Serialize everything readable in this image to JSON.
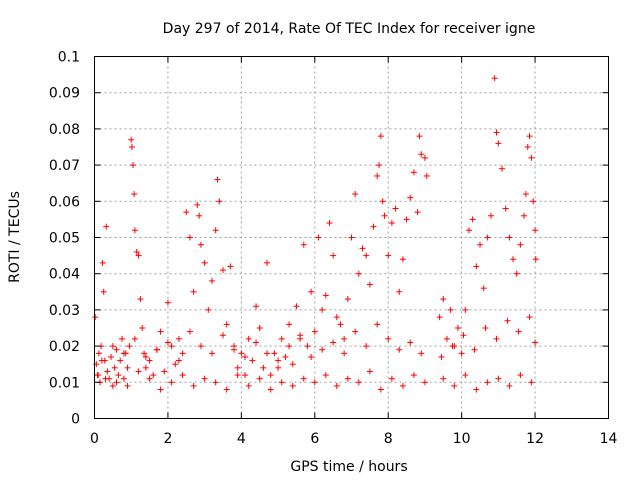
{
  "chart_data": {
    "type": "scatter",
    "title": "Day 297 of 2014, Rate Of TEC Index for receiver igne",
    "xlabel": "GPS time / hours",
    "ylabel": "ROTI / TECUs",
    "xlim": [
      0,
      14
    ],
    "ylim": [
      0,
      0.1
    ],
    "x_ticks": [
      "0",
      "2",
      "4",
      "6",
      "8",
      "10",
      "12",
      "14"
    ],
    "y_ticks": [
      "0",
      "0.01",
      "0.02",
      "0.03",
      "0.04",
      "0.05",
      "0.06",
      "0.07",
      "0.08",
      "0.09",
      "0.1"
    ],
    "grid": true,
    "marker": "+",
    "color": "#ff0000",
    "series": [
      {
        "name": "ROTI",
        "x": [
          0.02,
          0.05,
          0.08,
          0.12,
          0.15,
          0.18,
          0.22,
          0.25,
          0.28,
          0.32,
          0.35,
          0.4,
          0.45,
          0.5,
          0.55,
          0.6,
          0.65,
          0.7,
          0.75,
          0.8,
          0.85,
          0.9,
          0.95,
          1.0,
          1.02,
          1.05,
          1.08,
          1.1,
          1.15,
          1.2,
          1.25,
          1.3,
          1.35,
          1.4,
          1.5,
          1.6,
          1.7,
          1.8,
          1.9,
          2.0,
          2.1,
          2.2,
          2.3,
          2.4,
          2.5,
          2.6,
          2.7,
          2.8,
          2.85,
          2.9,
          3.0,
          3.1,
          3.2,
          3.3,
          3.35,
          3.4,
          3.5,
          3.6,
          3.7,
          3.8,
          3.9,
          4.0,
          4.1,
          4.2,
          4.3,
          4.4,
          4.5,
          4.6,
          4.7,
          4.8,
          4.9,
          5.0,
          5.1,
          5.2,
          5.3,
          5.4,
          5.5,
          5.6,
          5.7,
          5.8,
          5.9,
          6.0,
          6.1,
          6.2,
          6.3,
          6.4,
          6.5,
          6.6,
          6.7,
          6.8,
          6.9,
          7.0,
          7.1,
          7.2,
          7.3,
          7.4,
          7.5,
          7.6,
          7.7,
          7.75,
          7.8,
          7.85,
          7.9,
          8.0,
          8.1,
          8.2,
          8.3,
          8.4,
          8.5,
          8.6,
          8.7,
          8.8,
          8.85,
          8.9,
          9.0,
          9.05,
          9.4,
          9.5,
          9.6,
          9.7,
          9.8,
          9.9,
          10.0,
          10.1,
          10.2,
          10.3,
          10.4,
          10.5,
          10.6,
          10.7,
          10.8,
          10.9,
          10.95,
          11.0,
          11.1,
          11.2,
          11.3,
          11.4,
          11.5,
          11.6,
          11.7,
          11.75,
          11.8,
          11.85,
          11.9,
          11.95,
          12.0,
          12.02,
          0.1,
          0.3,
          0.6,
          0.9,
          1.2,
          1.5,
          1.8,
          2.1,
          2.4,
          2.7,
          3.0,
          3.3,
          3.6,
          3.9,
          4.2,
          4.5,
          4.8,
          5.1,
          5.4,
          5.7,
          6.0,
          6.3,
          6.6,
          6.9,
          7.2,
          7.5,
          7.8,
          8.1,
          8.4,
          8.7,
          9.0,
          9.5,
          9.8,
          10.1,
          10.4,
          10.7,
          11.0,
          11.3,
          11.6,
          11.9,
          0.2,
          0.5,
          0.8,
          1.1,
          1.4,
          1.7,
          2.0,
          2.3,
          2.6,
          2.9,
          3.2,
          3.5,
          3.8,
          4.1,
          4.4,
          4.7,
          5.0,
          5.3,
          5.6,
          5.9,
          6.2,
          6.5,
          6.8,
          7.1,
          7.4,
          7.7,
          8.0,
          8.3,
          8.6,
          8.9,
          9.45,
          9.75,
          10.05,
          10.35,
          10.65,
          10.95,
          11.25,
          11.55,
          11.85,
          12.0
        ],
        "y": [
          0.028,
          0.015,
          0.012,
          0.018,
          0.01,
          0.02,
          0.043,
          0.035,
          0.016,
          0.053,
          0.013,
          0.011,
          0.017,
          0.009,
          0.014,
          0.019,
          0.012,
          0.016,
          0.022,
          0.011,
          0.018,
          0.014,
          0.02,
          0.077,
          0.075,
          0.07,
          0.062,
          0.052,
          0.046,
          0.045,
          0.033,
          0.025,
          0.018,
          0.014,
          0.016,
          0.012,
          0.019,
          0.024,
          0.013,
          0.032,
          0.02,
          0.015,
          0.022,
          0.018,
          0.057,
          0.05,
          0.035,
          0.059,
          0.056,
          0.048,
          0.043,
          0.03,
          0.038,
          0.052,
          0.066,
          0.06,
          0.041,
          0.026,
          0.042,
          0.02,
          0.014,
          0.018,
          0.012,
          0.022,
          0.016,
          0.031,
          0.025,
          0.014,
          0.043,
          0.012,
          0.018,
          0.014,
          0.022,
          0.017,
          0.026,
          0.015,
          0.031,
          0.023,
          0.048,
          0.02,
          0.035,
          0.024,
          0.05,
          0.03,
          0.034,
          0.054,
          0.045,
          0.028,
          0.026,
          0.022,
          0.033,
          0.05,
          0.062,
          0.04,
          0.047,
          0.045,
          0.037,
          0.053,
          0.067,
          0.07,
          0.078,
          0.06,
          0.056,
          0.045,
          0.054,
          0.058,
          0.035,
          0.044,
          0.055,
          0.061,
          0.068,
          0.057,
          0.078,
          0.073,
          0.072,
          0.067,
          0.028,
          0.033,
          0.022,
          0.03,
          0.02,
          0.025,
          0.018,
          0.03,
          0.052,
          0.055,
          0.042,
          0.048,
          0.036,
          0.05,
          0.056,
          0.094,
          0.079,
          0.076,
          0.069,
          0.058,
          0.05,
          0.044,
          0.04,
          0.048,
          0.056,
          0.062,
          0.075,
          0.078,
          0.072,
          0.06,
          0.052,
          0.044,
          0.012,
          0.011,
          0.01,
          0.009,
          0.013,
          0.011,
          0.008,
          0.01,
          0.012,
          0.009,
          0.011,
          0.01,
          0.008,
          0.012,
          0.009,
          0.011,
          0.008,
          0.01,
          0.009,
          0.011,
          0.01,
          0.012,
          0.009,
          0.011,
          0.01,
          0.013,
          0.008,
          0.011,
          0.009,
          0.012,
          0.01,
          0.011,
          0.009,
          0.012,
          0.008,
          0.01,
          0.011,
          0.009,
          0.012,
          0.01,
          0.016,
          0.02,
          0.018,
          0.022,
          0.017,
          0.019,
          0.021,
          0.016,
          0.024,
          0.02,
          0.018,
          0.023,
          0.019,
          0.017,
          0.021,
          0.018,
          0.016,
          0.02,
          0.022,
          0.017,
          0.019,
          0.021,
          0.018,
          0.024,
          0.02,
          0.026,
          0.022,
          0.019,
          0.021,
          0.018,
          0.017,
          0.02,
          0.023,
          0.019,
          0.025,
          0.022,
          0.027,
          0.024,
          0.028,
          0.021
        ]
      }
    ]
  }
}
